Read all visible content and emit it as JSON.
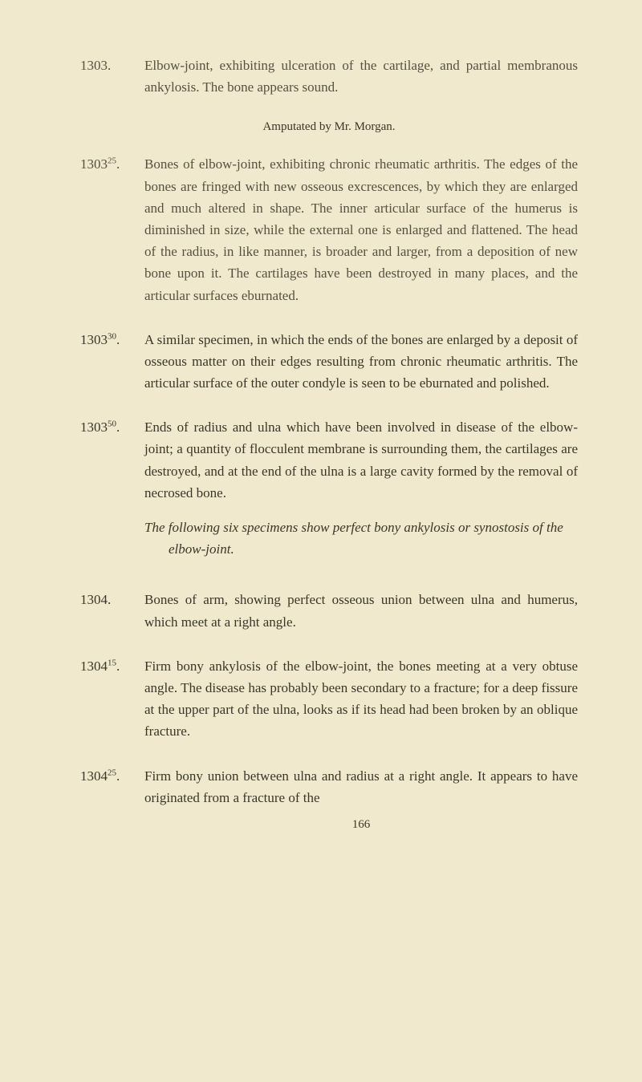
{
  "background_color": "#f0e9ce",
  "text_color": "#3a3628",
  "font_family": "Georgia, Times New Roman, serif",
  "body_fontsize": 17,
  "attribution_fontsize": 15,
  "entries": {
    "e1303": {
      "number": "1303.",
      "text": "Elbow-joint, exhibiting ulceration of the cartilage, and partial membranous ankylosis. The bone appears sound."
    },
    "attribution": "Amputated by Mr. Morgan.",
    "e1303_25": {
      "number_base": "1303",
      "number_sup": "25",
      "number_suffix": ".",
      "text": "Bones of elbow-joint, exhibiting chronic rheumatic arthritis. The edges of the bones are fringed with new osseous excrescences, by which they are enlarged and much altered in shape. The inner articular surface of the humerus is diminished in size, while the external one is enlarged and flattened. The head of the radius, in like manner, is broader and larger, from a deposition of new bone upon it. The cartilages have been destroyed in many places, and the articular surfaces eburnated."
    },
    "e1303_30": {
      "number_base": "1303",
      "number_sup": "30",
      "number_suffix": ".",
      "text": "A similar specimen, in which the ends of the bones are enlarged by a deposit of osseous matter on their edges resulting from chronic rheumatic arthritis. The articular surface of the outer condyle is seen to be eburnated and polished."
    },
    "e1303_50": {
      "number_base": "1303",
      "number_sup": "50",
      "number_suffix": ".",
      "text": "Ends of radius and ulna which have been involved in disease of the elbow-joint; a quantity of flocculent membrane is surrounding them, the cartilages are destroyed, and at the end of the ulna is a large cavity formed by the removal of necrosed bone."
    },
    "italic_heading": "The following six specimens show perfect bony ankylosis or synostosis of the elbow-joint.",
    "e1304": {
      "number": "1304.",
      "text": "Bones of arm, showing perfect osseous union between ulna and humerus, which meet at a right angle."
    },
    "e1304_15": {
      "number_base": "1304",
      "number_sup": "15",
      "number_suffix": ".",
      "text": "Firm bony ankylosis of the elbow-joint, the bones meeting at a very obtuse angle. The disease has probably been secondary to a fracture; for a deep fissure at the upper part of the ulna, looks as if its head had been broken by an oblique fracture."
    },
    "e1304_25": {
      "number_base": "1304",
      "number_sup": "25",
      "number_suffix": ".",
      "text": "Firm bony union between ulna and radius at a right angle. It appears to have originated from a fracture of the"
    }
  },
  "page_number": "166"
}
